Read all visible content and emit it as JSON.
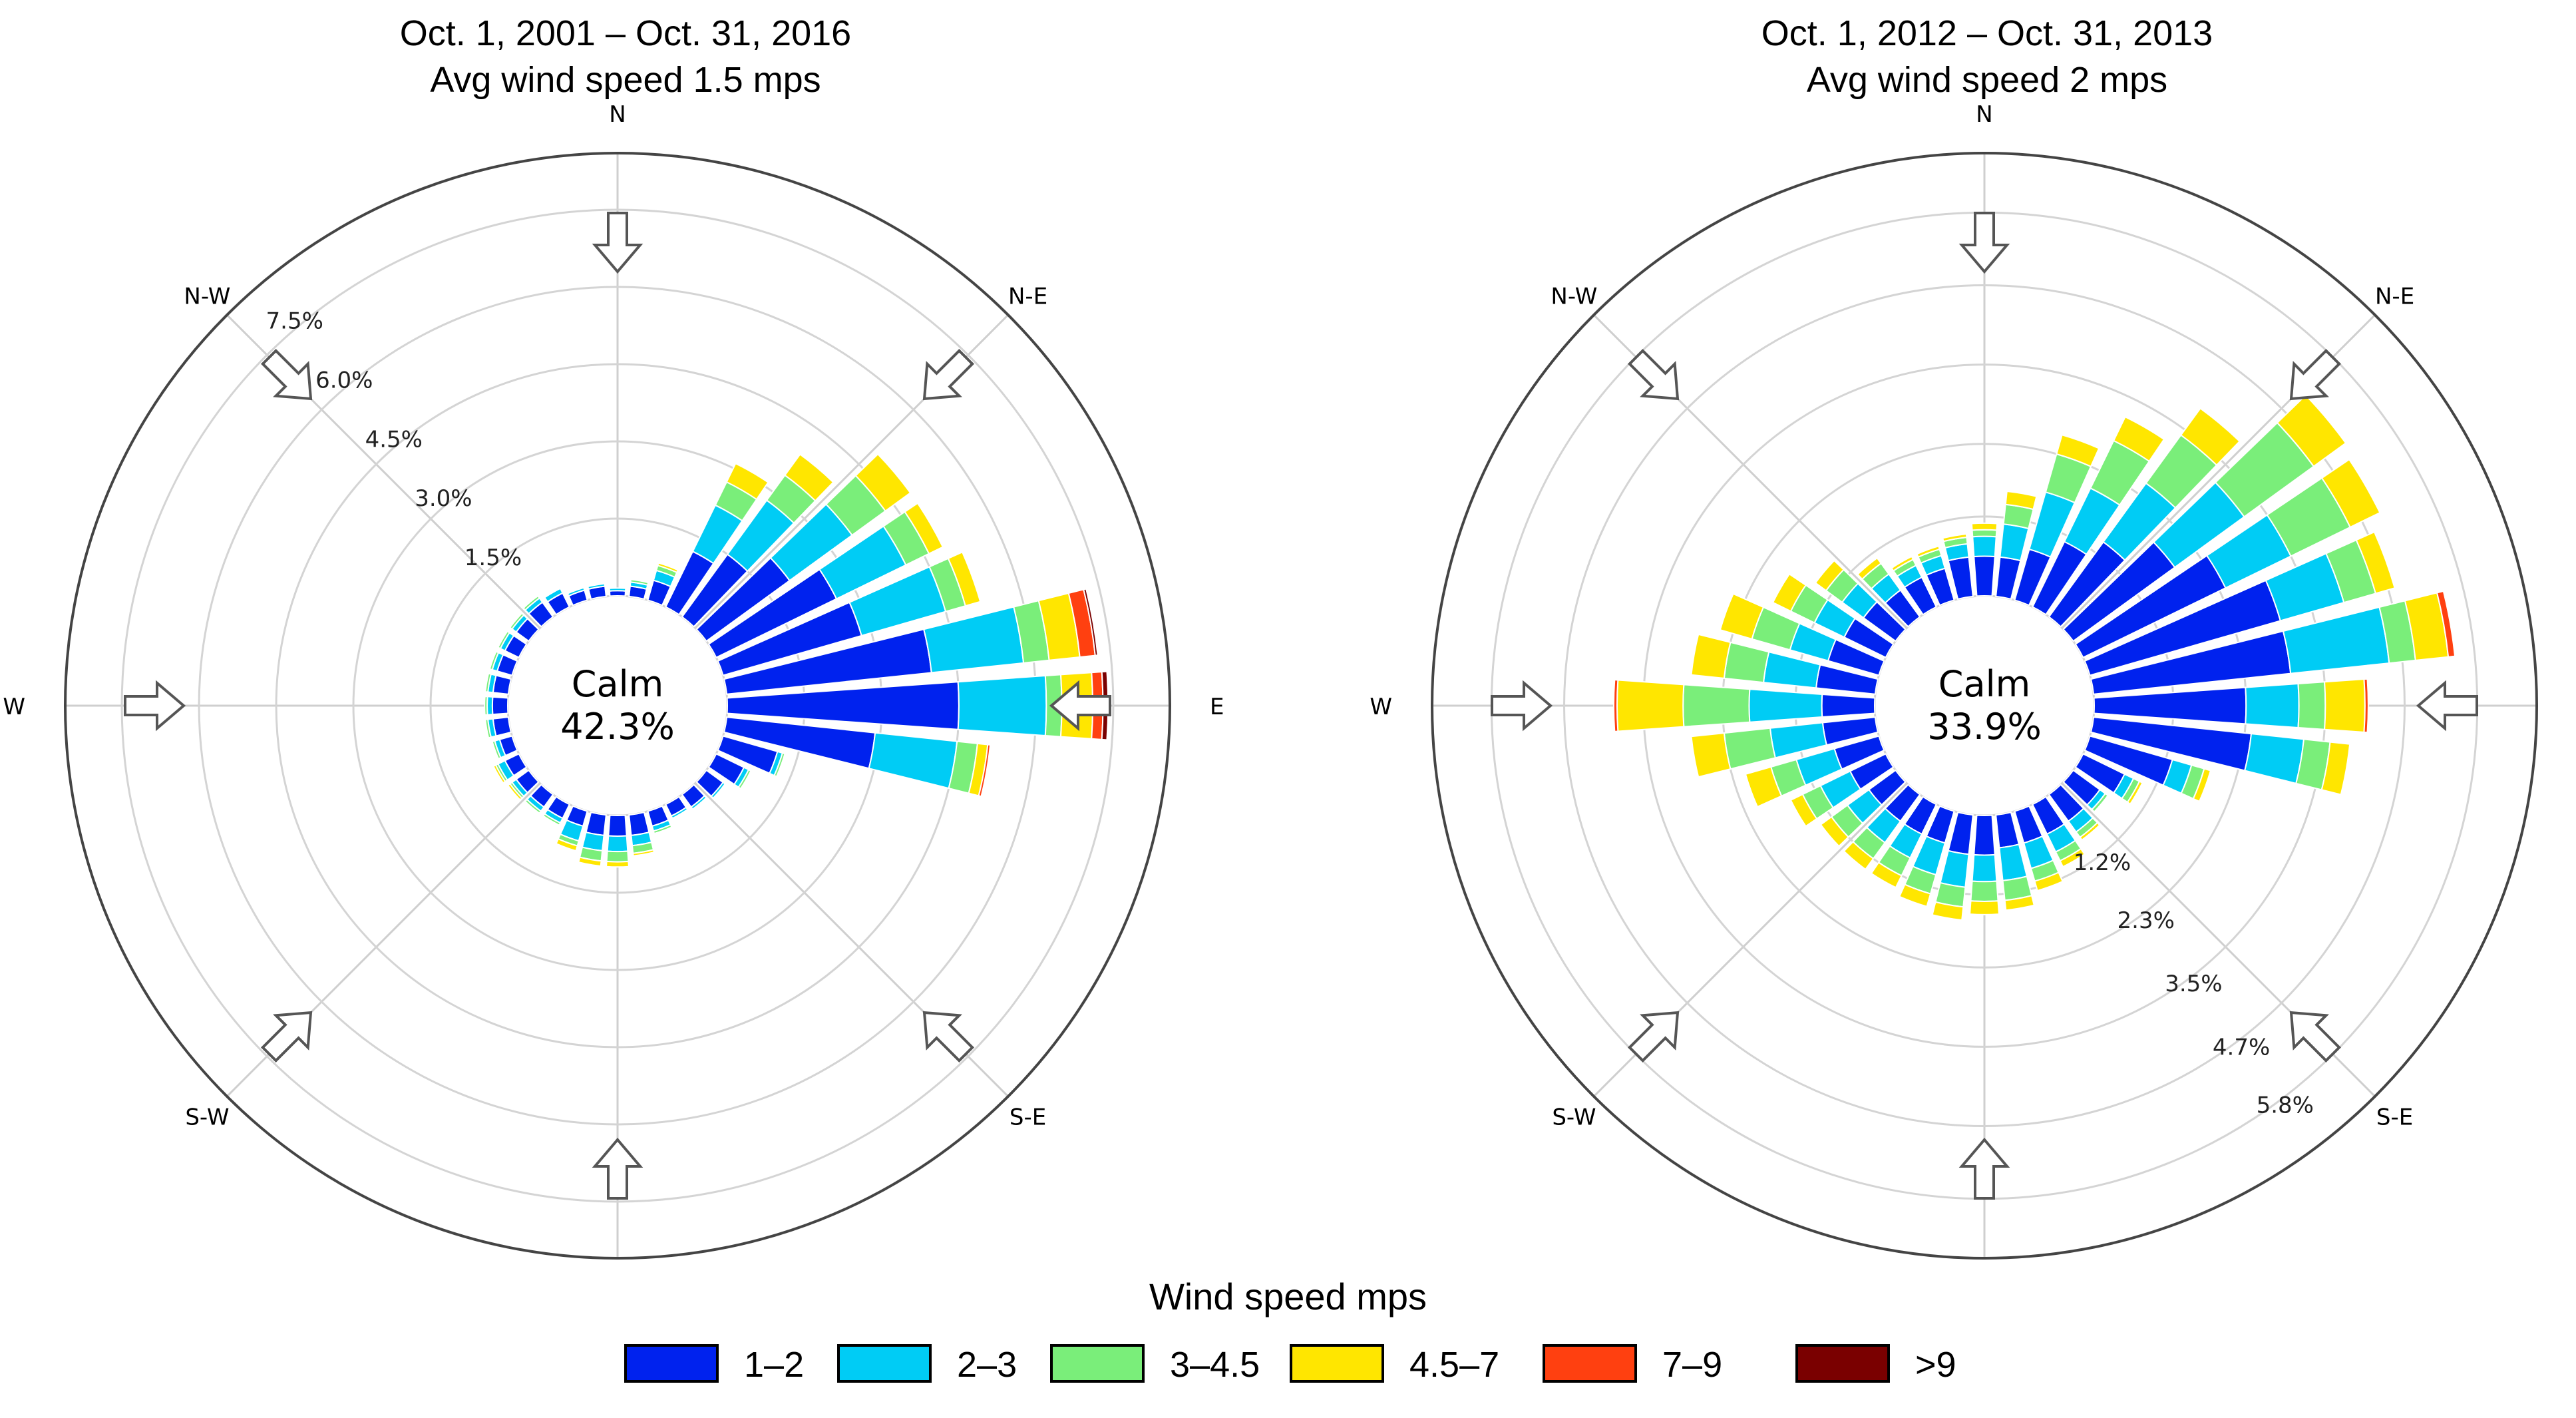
{
  "chart_data": [
    {
      "type": "wind-rose",
      "title": "Oct. 1, 2001 – Oct. 31, 2016",
      "subtitle": "Avg wind speed 1.5 mps",
      "center_label": "Calm",
      "calm_percent": "42.3%",
      "radial_tick_labels": [
        "1.5%",
        "3.0%",
        "4.5%",
        "6.0%",
        "7.5%"
      ],
      "radial_ticks": [
        1.5,
        3.0,
        4.5,
        6.0,
        7.5
      ],
      "rmax": 8.6,
      "radial_label_side": "north-west",
      "directions": [
        "N",
        "N-E",
        "E",
        "S-E",
        "S",
        "S-W",
        "W",
        "N-W"
      ],
      "sector_count": 36,
      "sectors": [
        {
          "bearing": 0,
          "values": [
            0.1,
            0.05,
            0,
            0,
            0,
            0
          ]
        },
        {
          "bearing": 10,
          "values": [
            0.2,
            0.08,
            0.05,
            0,
            0,
            0
          ]
        },
        {
          "bearing": 20,
          "values": [
            0.4,
            0.2,
            0.1,
            0.05,
            0,
            0
          ]
        },
        {
          "bearing": 30,
          "values": [
            1.2,
            1.0,
            0.5,
            0.4,
            0,
            0
          ]
        },
        {
          "bearing": 40,
          "values": [
            1.5,
            1.3,
            0.6,
            0.5,
            0,
            0
          ]
        },
        {
          "bearing": 50,
          "values": [
            2.0,
            1.5,
            0.8,
            0.6,
            0,
            0
          ]
        },
        {
          "bearing": 60,
          "values": [
            2.6,
            1.5,
            0.5,
            0.3,
            0,
            0
          ]
        },
        {
          "bearing": 70,
          "values": [
            2.8,
            1.7,
            0.4,
            0.3,
            0,
            0
          ]
        },
        {
          "bearing": 80,
          "values": [
            4.0,
            1.8,
            0.5,
            0.6,
            0.3,
            0.05
          ]
        },
        {
          "bearing": 90,
          "values": [
            4.5,
            1.7,
            0.3,
            0.6,
            0.2,
            0.1
          ]
        },
        {
          "bearing": 100,
          "values": [
            2.9,
            1.6,
            0.4,
            0.2,
            0.05,
            0
          ]
        },
        {
          "bearing": 110,
          "values": [
            1.1,
            0.1,
            0.05,
            0,
            0,
            0
          ]
        },
        {
          "bearing": 120,
          "values": [
            0.6,
            0.1,
            0.05,
            0,
            0,
            0
          ]
        },
        {
          "bearing": 130,
          "values": [
            0.4,
            0.05,
            0,
            0,
            0,
            0
          ]
        },
        {
          "bearing": 140,
          "values": [
            0.3,
            0.05,
            0,
            0,
            0,
            0
          ]
        },
        {
          "bearing": 150,
          "values": [
            0.25,
            0.05,
            0,
            0,
            0,
            0
          ]
        },
        {
          "bearing": 160,
          "values": [
            0.3,
            0.1,
            0.05,
            0,
            0,
            0
          ]
        },
        {
          "bearing": 170,
          "values": [
            0.4,
            0.2,
            0.15,
            0.05,
            0,
            0
          ]
        },
        {
          "bearing": 180,
          "values": [
            0.4,
            0.3,
            0.2,
            0.1,
            0,
            0
          ]
        },
        {
          "bearing": 190,
          "values": [
            0.4,
            0.3,
            0.2,
            0.1,
            0,
            0
          ]
        },
        {
          "bearing": 200,
          "values": [
            0.3,
            0.3,
            0.1,
            0.1,
            0,
            0
          ]
        },
        {
          "bearing": 210,
          "values": [
            0.3,
            0.1,
            0.05,
            0,
            0,
            0
          ]
        },
        {
          "bearing": 220,
          "values": [
            0.3,
            0.1,
            0.05,
            0,
            0,
            0
          ]
        },
        {
          "bearing": 230,
          "values": [
            0.3,
            0.1,
            0.05,
            0.05,
            0,
            0
          ]
        },
        {
          "bearing": 240,
          "values": [
            0.3,
            0.15,
            0.05,
            0.05,
            0,
            0
          ]
        },
        {
          "bearing": 250,
          "values": [
            0.25,
            0.1,
            0.05,
            0,
            0,
            0
          ]
        },
        {
          "bearing": 260,
          "values": [
            0.3,
            0.1,
            0.05,
            0,
            0,
            0
          ]
        },
        {
          "bearing": 270,
          "values": [
            0.3,
            0.1,
            0.05,
            0,
            0,
            0
          ]
        },
        {
          "bearing": 280,
          "values": [
            0.3,
            0.1,
            0.05,
            0,
            0,
            0
          ]
        },
        {
          "bearing": 290,
          "values": [
            0.3,
            0.1,
            0.05,
            0,
            0,
            0
          ]
        },
        {
          "bearing": 300,
          "values": [
            0.3,
            0.1,
            0.05,
            0,
            0,
            0
          ]
        },
        {
          "bearing": 310,
          "values": [
            0.3,
            0.1,
            0.05,
            0,
            0,
            0
          ]
        },
        {
          "bearing": 320,
          "values": [
            0.35,
            0.1,
            0.05,
            0,
            0,
            0
          ]
        },
        {
          "bearing": 330,
          "values": [
            0.3,
            0.1,
            0,
            0,
            0,
            0
          ]
        },
        {
          "bearing": 340,
          "values": [
            0.2,
            0.05,
            0,
            0,
            0,
            0
          ]
        },
        {
          "bearing": 350,
          "values": [
            0.2,
            0.05,
            0,
            0,
            0,
            0
          ]
        }
      ]
    },
    {
      "type": "wind-rose",
      "title": "Oct. 1, 2012 – Oct. 31, 2013",
      "subtitle": "Avg wind speed 2 mps",
      "center_label": "Calm",
      "calm_percent": "33.9%",
      "radial_tick_labels": [
        "1.2%",
        "2.3%",
        "3.5%",
        "4.7%",
        "5.8%"
      ],
      "radial_ticks": [
        1.2,
        2.3,
        3.5,
        4.7,
        5.8
      ],
      "rmax": 6.7,
      "radial_label_side": "south-east",
      "directions": [
        "N",
        "N-E",
        "E",
        "S-E",
        "S",
        "S-W",
        "W",
        "N-W"
      ],
      "sector_count": 36,
      "sectors": [
        {
          "bearing": 0,
          "values": [
            0.6,
            0.3,
            0.1,
            0.1,
            0,
            0
          ]
        },
        {
          "bearing": 10,
          "values": [
            0.6,
            0.5,
            0.3,
            0.2,
            0,
            0
          ]
        },
        {
          "bearing": 20,
          "values": [
            0.8,
            0.9,
            0.6,
            0.3,
            0,
            0
          ]
        },
        {
          "bearing": 30,
          "values": [
            1.1,
            0.9,
            0.8,
            0.4,
            0,
            0
          ]
        },
        {
          "bearing": 40,
          "values": [
            1.4,
            1.1,
            0.9,
            0.5,
            0,
            0
          ]
        },
        {
          "bearing": 50,
          "values": [
            1.9,
            1.3,
            1.3,
            0.6,
            0,
            0
          ]
        },
        {
          "bearing": 60,
          "values": [
            2.4,
            1.1,
            1.0,
            0.5,
            0,
            0
          ]
        },
        {
          "bearing": 70,
          "values": [
            3.0,
            1.0,
            0.5,
            0.3,
            0,
            0
          ]
        },
        {
          "bearing": 80,
          "values": [
            3.0,
            1.5,
            0.4,
            0.5,
            0.1,
            0
          ]
        },
        {
          "bearing": 90,
          "values": [
            2.3,
            0.8,
            0.4,
            0.6,
            0.05,
            0
          ]
        },
        {
          "bearing": 100,
          "values": [
            2.4,
            0.8,
            0.4,
            0.3,
            0,
            0
          ]
        },
        {
          "bearing": 110,
          "values": [
            1.3,
            0.3,
            0.2,
            0.1,
            0,
            0
          ]
        },
        {
          "bearing": 120,
          "values": [
            0.7,
            0.15,
            0.1,
            0.05,
            0,
            0
          ]
        },
        {
          "bearing": 130,
          "values": [
            0.5,
            0.1,
            0.05,
            0,
            0,
            0
          ]
        },
        {
          "bearing": 140,
          "values": [
            0.5,
            0.2,
            0.1,
            0.05,
            0,
            0
          ]
        },
        {
          "bearing": 150,
          "values": [
            0.5,
            0.3,
            0.15,
            0.1,
            0,
            0
          ]
        },
        {
          "bearing": 160,
          "values": [
            0.5,
            0.4,
            0.2,
            0.15,
            0,
            0
          ]
        },
        {
          "bearing": 170,
          "values": [
            0.5,
            0.5,
            0.3,
            0.15,
            0,
            0
          ]
        },
        {
          "bearing": 180,
          "values": [
            0.6,
            0.4,
            0.3,
            0.2,
            0,
            0
          ]
        },
        {
          "bearing": 190,
          "values": [
            0.6,
            0.5,
            0.3,
            0.2,
            0,
            0
          ]
        },
        {
          "bearing": 200,
          "values": [
            0.5,
            0.5,
            0.3,
            0.2,
            0,
            0
          ]
        },
        {
          "bearing": 210,
          "values": [
            0.5,
            0.4,
            0.3,
            0.2,
            0,
            0
          ]
        },
        {
          "bearing": 220,
          "values": [
            0.5,
            0.4,
            0.3,
            0.2,
            0,
            0
          ]
        },
        {
          "bearing": 230,
          "values": [
            0.5,
            0.4,
            0.3,
            0.2,
            0,
            0
          ]
        },
        {
          "bearing": 240,
          "values": [
            0.6,
            0.5,
            0.3,
            0.2,
            0,
            0
          ]
        },
        {
          "bearing": 250,
          "values": [
            0.7,
            0.6,
            0.4,
            0.4,
            0,
            0
          ]
        },
        {
          "bearing": 260,
          "values": [
            0.8,
            0.8,
            0.7,
            0.5,
            0,
            0
          ]
        },
        {
          "bearing": 270,
          "values": [
            0.8,
            1.1,
            1.0,
            1.0,
            0.05,
            0
          ]
        },
        {
          "bearing": 280,
          "values": [
            0.9,
            0.8,
            0.6,
            0.5,
            0,
            0
          ]
        },
        {
          "bearing": 290,
          "values": [
            0.8,
            0.6,
            0.6,
            0.5,
            0,
            0
          ]
        },
        {
          "bearing": 300,
          "values": [
            0.7,
            0.5,
            0.4,
            0.3,
            0,
            0
          ]
        },
        {
          "bearing": 310,
          "values": [
            0.6,
            0.4,
            0.3,
            0.2,
            0,
            0
          ]
        },
        {
          "bearing": 320,
          "values": [
            0.5,
            0.3,
            0.2,
            0.1,
            0,
            0
          ]
        },
        {
          "bearing": 330,
          "values": [
            0.5,
            0.2,
            0.1,
            0.05,
            0,
            0
          ]
        },
        {
          "bearing": 340,
          "values": [
            0.5,
            0.2,
            0.1,
            0.05,
            0,
            0
          ]
        },
        {
          "bearing": 350,
          "values": [
            0.6,
            0.2,
            0.1,
            0.05,
            0,
            0
          ]
        }
      ]
    }
  ],
  "legend": {
    "title": "Wind speed mps",
    "placement": "bottom",
    "items": [
      {
        "label": "1–2",
        "color": "#0022ee"
      },
      {
        "label": "2–3",
        "color": "#00ccf5"
      },
      {
        "label": "3–4.5",
        "color": "#7aee7a"
      },
      {
        "label": "4.5–7",
        "color": "#ffe600"
      },
      {
        "label": "7–9",
        "color": "#ff4010"
      },
      {
        "label": ">9",
        "color": "#7a0000"
      }
    ]
  }
}
